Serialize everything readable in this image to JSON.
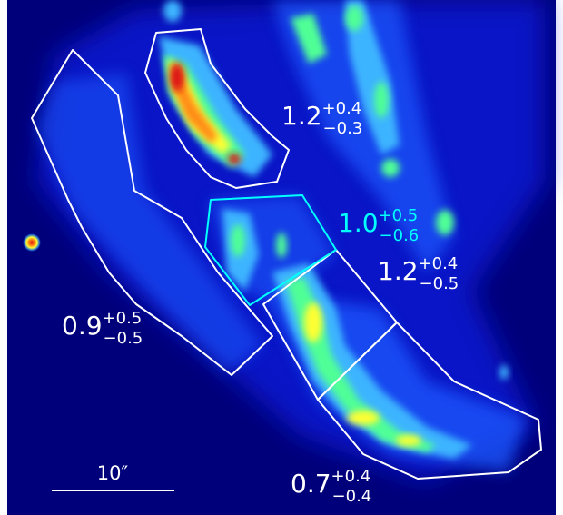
{
  "scale_bar": {
    "label": "10″"
  },
  "regions": [
    {
      "id": "upper-left-arc",
      "base": "1.2",
      "sup": "+0.4",
      "sub": "−0.3",
      "color": "#ffffff"
    },
    {
      "id": "central-box",
      "base": "1.0",
      "sup": "+0.5",
      "sub": "−0.6",
      "color": "#00ffff"
    },
    {
      "id": "right-middle",
      "base": "1.2",
      "sup": "+0.4",
      "sub": "−0.5",
      "color": "#ffffff"
    },
    {
      "id": "left-strip",
      "base": "0.9",
      "sup": "+0.5",
      "sub": "−0.5",
      "color": "#ffffff"
    },
    {
      "id": "lower-right",
      "base": "0.7",
      "sup": "+0.4",
      "sub": "−0.4",
      "color": "#ffffff"
    }
  ],
  "colors": {
    "background": "#00007a",
    "contour": "#ffffff",
    "highlight_contour": "#00ffff",
    "colormap": [
      "#00007a",
      "#0a1ee0",
      "#1e5aff",
      "#3cb4ff",
      "#50ff96",
      "#ffff32",
      "#ff8c14",
      "#dc1414"
    ]
  }
}
